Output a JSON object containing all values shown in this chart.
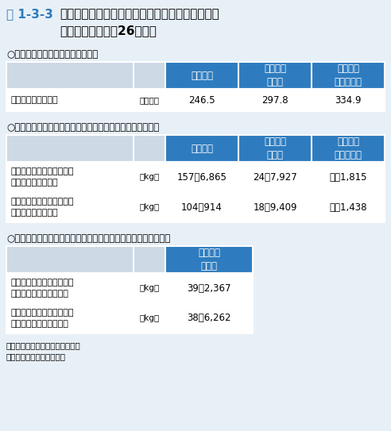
{
  "title_label": "表 1-3-3",
  "title_text": "家電リサイクル法対象製品からのフロン類の回収\n量・破壊量（平成26年度）",
  "bg_color": "#e8f0f7",
  "header_bg": "#2e7cbf",
  "header_text_color": "#ffffff",
  "row_bg": "#ffffff",
  "border_color": "#ffffff",
  "section1_title": "○廃家電４品目の再商品化実施状況",
  "section2_title": "○冷媒として使用されていたフロン類の回収重量、破壊重量",
  "section3_title": "○断熱材に含まれる液化回収したフロン類の回収重量、破壊重量",
  "note1": "注：値は全て小数点以下を切捨て",
  "note2": "資料：環境省、経済産業省",
  "col_headers": [
    "エアコン",
    "冷蔵庫・\n冷凍庫",
    "洗濯機・\n衣類乾燥機"
  ],
  "col_headers3": [
    "冷蔵庫・\n冷凍庫"
  ],
  "table1_row_label": "再商品化等処理台数",
  "table1_row_unit": "【万台】",
  "table1_values": [
    "246.5",
    "297.8",
    "334.9"
  ],
  "table2_row1_label": "冷媒として使用されていた\nフロン類の回収重量",
  "table2_row1_unit": "【kg】",
  "table2_row1_values": [
    "157万6,865",
    "24万7,927",
    "１万1,815"
  ],
  "table2_row2_label": "冷媒として使用されていた\nフロン類の破壊重量",
  "table2_row2_unit": "【kg】",
  "table2_row2_values": [
    "104万914",
    "18万9,409",
    "１万1,438"
  ],
  "table3_row1_label": "断熱材に含まれる液化回収\nしたフロン類の回収重量",
  "table3_row1_unit": "【kg】",
  "table3_row1_value": "39万2,367",
  "table3_row2_label": "断熱材に含まれる液化回収\nしたフロン類の破壊重量",
  "table3_row2_unit": "【kg】",
  "table3_row2_value": "38万6,262",
  "title_color": "#1a5276",
  "label_color": "#2e7cbf",
  "section_title_color": "#000000",
  "cell_text_color": "#000000"
}
